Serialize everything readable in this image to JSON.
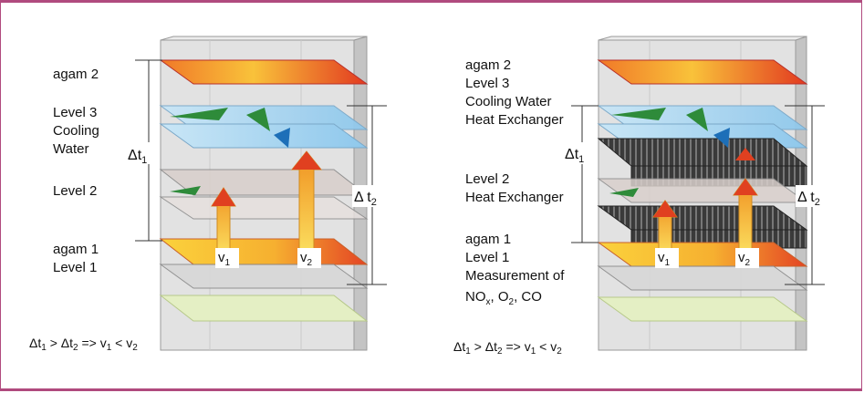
{
  "left_diagram": {
    "labels": {
      "agam2": "agam 2",
      "level3": "Level 3",
      "cooling": "Cooling",
      "water": "Water",
      "level2": "Level 2",
      "agam1": "agam 1",
      "level1": "Level 1"
    },
    "dt1": {
      "sym": "Δt",
      "sub": "1"
    },
    "dt2": {
      "sym": "Δ t",
      "sub": "2"
    },
    "v1": {
      "sym": "v",
      "sub": "1"
    },
    "v2": {
      "sym": "v",
      "sub": "2"
    },
    "formula": {
      "a": "Δt",
      "a_sub": "1",
      "gt": " > Δt",
      "b_sub": "2",
      "impl": " => v",
      "c_sub": "1",
      "lt": " < v",
      "d_sub": "2"
    }
  },
  "right_diagram": {
    "labels": {
      "agam2": "agam 2",
      "level3": "Level 3",
      "cooling_water": "Cooling Water",
      "heat_exchanger_top": "Heat Exchanger",
      "level2": "Level 2",
      "heat_exchanger_mid": "Heat Exchanger",
      "agam1": "agam 1",
      "level1": "Level 1",
      "measurement": "Measurement of",
      "nox": "NO",
      "nox_sub": "x",
      "o2": ", O",
      "o2_sub": "2",
      "co": ", CO"
    },
    "dt1": {
      "sym": "Δt",
      "sub": "1"
    },
    "dt2": {
      "sym": "Δ t",
      "sub": "2"
    },
    "v1": {
      "sym": "v",
      "sub": "1"
    },
    "v2": {
      "sym": "v",
      "sub": "2"
    },
    "formula": {
      "a": "Δt",
      "a_sub": "1",
      "gt": " > Δt",
      "b_sub": "2",
      "impl": " => v",
      "c_sub": "1",
      "lt": " < v",
      "d_sub": "2"
    }
  },
  "colors": {
    "frame": "#b04a7e",
    "building": "#d6d6d6",
    "hot_plate": "#e8502a",
    "warm_plate": "#f6c23a",
    "cool_plate": "#a9d6ef",
    "ground_grid": "#e4efc4",
    "heat_exchanger": "#2a2a2a",
    "arrow_up": "#f0b020",
    "arrow_head": "#e04020"
  }
}
